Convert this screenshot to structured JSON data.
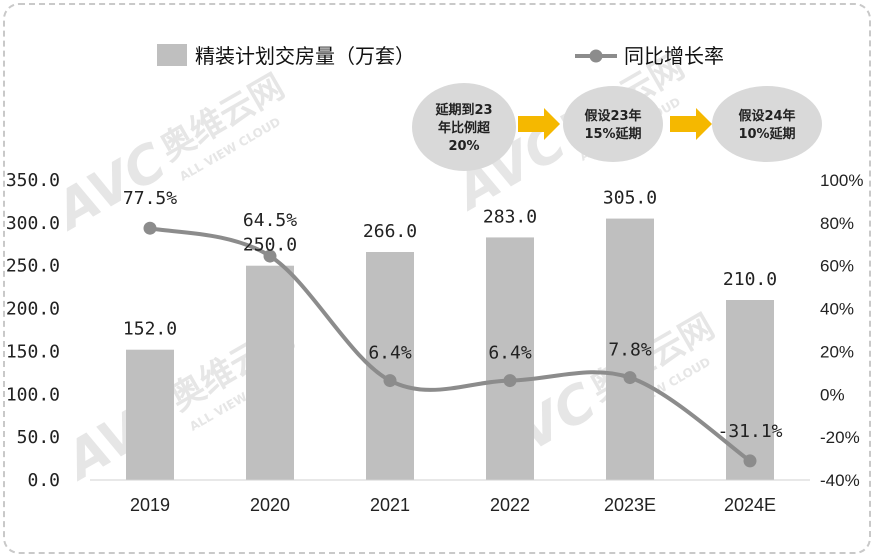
{
  "chart_data": {
    "type": "bar",
    "categories": [
      "2019",
      "2020",
      "2021",
      "2022",
      "2023E",
      "2024E"
    ],
    "series": [
      {
        "name": "精装计划交房量（万套）",
        "type": "bar",
        "axis": "left",
        "values": [
          152.0,
          250.0,
          266.0,
          283.0,
          305.0,
          210.0
        ],
        "labels": [
          "152.0",
          "250.0",
          "266.0",
          "283.0",
          "305.0",
          "210.0"
        ]
      },
      {
        "name": "同比增长率",
        "type": "line",
        "axis": "right",
        "values": [
          77.5,
          64.5,
          6.4,
          6.4,
          7.8,
          -31.1
        ],
        "labels": [
          "77.5%",
          "64.5%",
          "6.4%",
          "6.4%",
          "7.8%",
          "-31.1%"
        ]
      }
    ],
    "left_axis": {
      "ylim": [
        0,
        350
      ],
      "ticks": [
        "0.0",
        "50.0",
        "100.0",
        "150.0",
        "200.0",
        "250.0",
        "300.0",
        "350.0"
      ]
    },
    "right_axis": {
      "ylim": [
        -40,
        100
      ],
      "ticks": [
        "-40%",
        "-20%",
        "0%",
        "20%",
        "40%",
        "60%",
        "80%",
        "100%"
      ]
    },
    "legend": "top",
    "grid": false,
    "colors": {
      "bar": "#bfbfbf",
      "line": "#8c8c8c",
      "arrow": "#f5b800",
      "note_bg": "#d9d9d9"
    },
    "annotations": [
      {
        "text": [
          "延期到23",
          "年比例超",
          "20%"
        ]
      },
      {
        "text": [
          "假设23年",
          "15%延期"
        ]
      },
      {
        "text": [
          "假设24年",
          "10%延期"
        ]
      }
    ]
  },
  "watermark": {
    "brand": "奥维云网",
    "sub": "ALL VIEW CLOUD",
    "logo": "AVC"
  }
}
